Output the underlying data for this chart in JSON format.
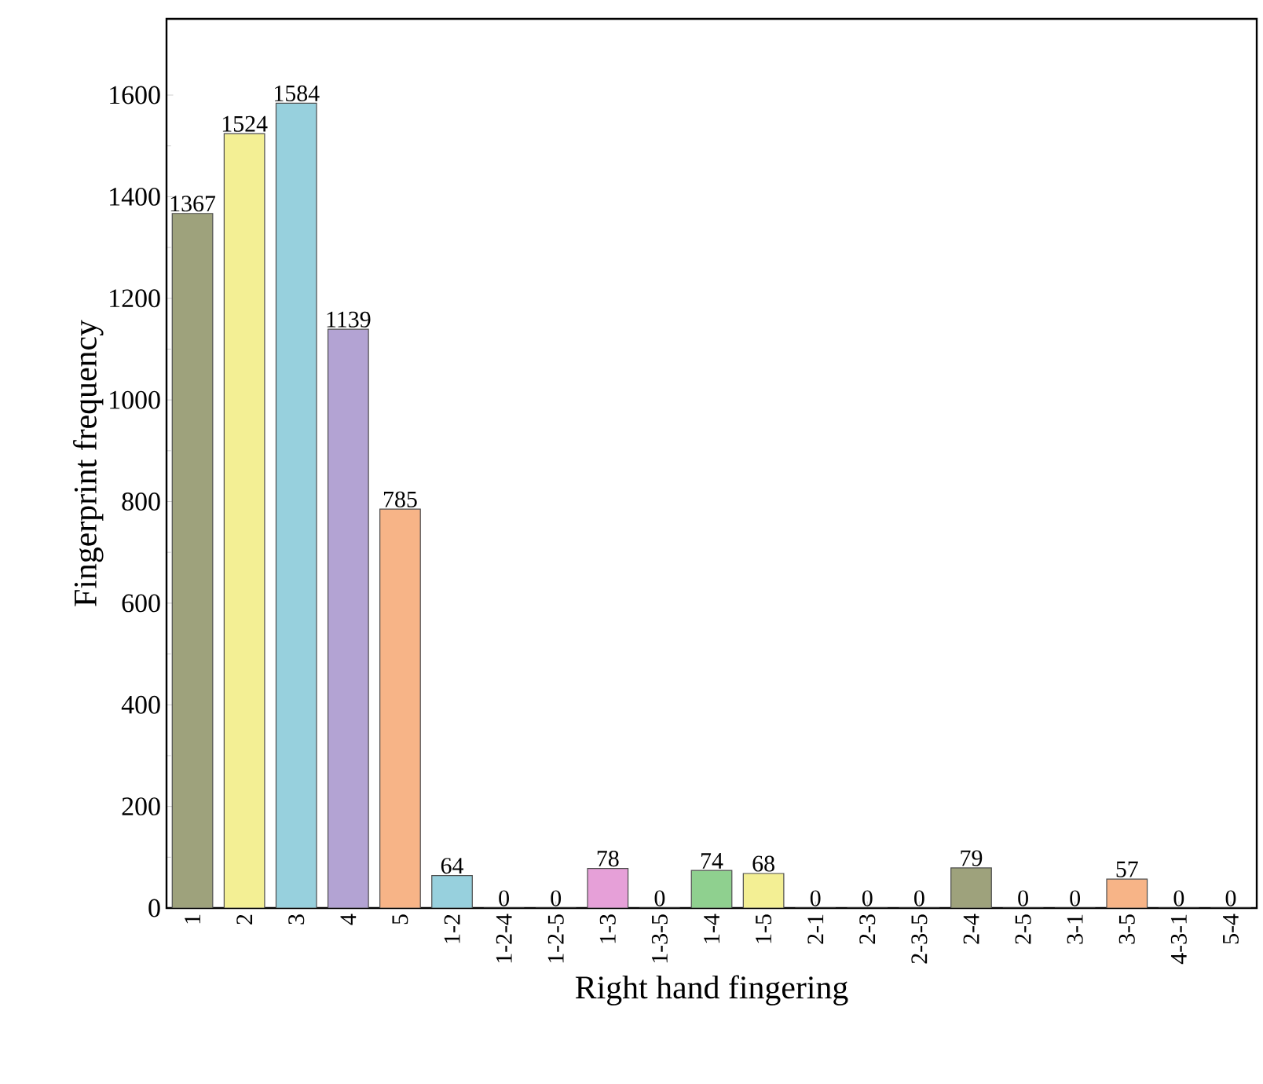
{
  "chart_data": {
    "type": "bar",
    "xlabel": "Right hand fingering",
    "ylabel": "Fingerprint frequency",
    "categories": [
      "1",
      "2",
      "3",
      "4",
      "5",
      "1-2",
      "1-2-4",
      "1-2-5",
      "1-3",
      "1-3-5",
      "1-4",
      "1-5",
      "2-1",
      "2-3",
      "2-3-5",
      "2-4",
      "2-5",
      "3-1",
      "3-5",
      "4-3-1",
      "5-4"
    ],
    "values": [
      1367,
      1524,
      1584,
      1139,
      785,
      64,
      0,
      0,
      78,
      0,
      74,
      68,
      0,
      0,
      0,
      79,
      0,
      0,
      57,
      0,
      0
    ],
    "colors": [
      "#9ea27c",
      "#f3ef94",
      "#97d0dd",
      "#b3a3d3",
      "#f7b487",
      "#97d0dd",
      "#9ea27c",
      "#f3ef94",
      "#e6a0d8",
      "#b3a3d3",
      "#8fd08f",
      "#f3ef94",
      "#97d0dd",
      "#b3a3d3",
      "#f7b487",
      "#9ea27c",
      "#f3ef94",
      "#97d0dd",
      "#f7b487",
      "#e6a0d8",
      "#8fd08f"
    ],
    "ylim": [
      0,
      1750
    ],
    "yticks": [
      0,
      200,
      400,
      600,
      800,
      1000,
      1200,
      1400,
      1600
    ],
    "data_labels": true
  }
}
